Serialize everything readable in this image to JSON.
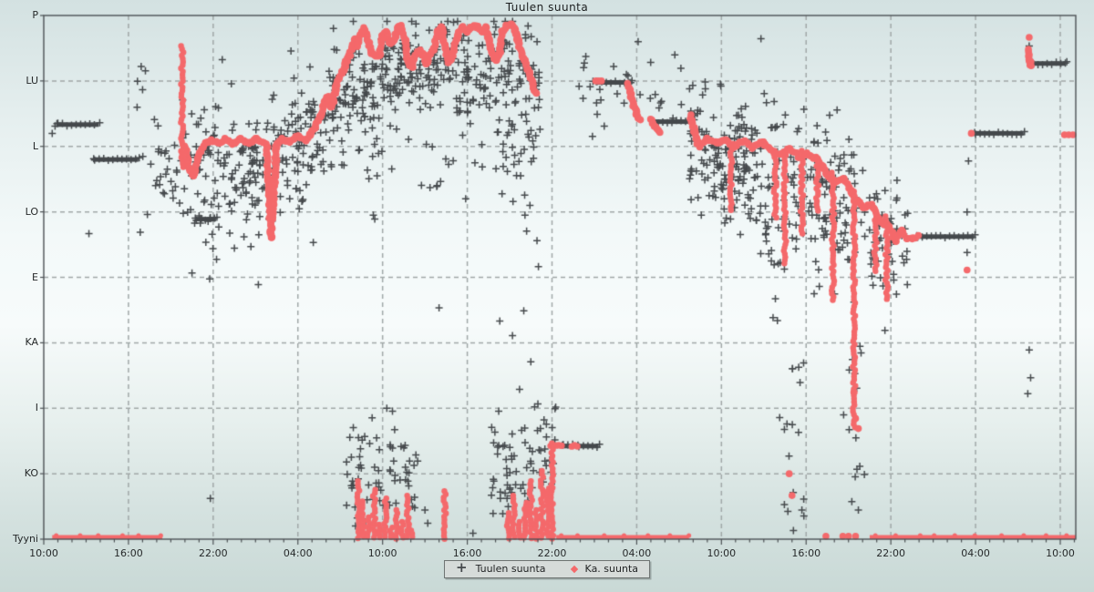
{
  "chart_data": {
    "type": "scatter",
    "title": "Tuulen suunta",
    "colors": {
      "avg": "#f4696b",
      "wind": "#45494c",
      "grid": "#a0a7a7",
      "frame": "#4c5154",
      "text": "#26292a"
    },
    "x_axis": {
      "tick_labels": [
        "10:00",
        "16:00",
        "22:00",
        "04:00",
        "10:00",
        "16:00",
        "22:00",
        "04:00",
        "10:00",
        "16:00",
        "22:00",
        "04:00",
        "10:00"
      ],
      "major_tick_hours": 6,
      "minor_tick_hours": 1,
      "range_hours": [
        0,
        73.1
      ],
      "grid": "dashed"
    },
    "y_axis": {
      "ticks": [
        {
          "label": "P",
          "deg": 360
        },
        {
          "label": "LU",
          "deg": 315
        },
        {
          "label": "L",
          "deg": 270
        },
        {
          "label": "LO",
          "deg": 225
        },
        {
          "label": "E",
          "deg": 180
        },
        {
          "label": "KA",
          "deg": 135
        },
        {
          "label": "I",
          "deg": 90
        },
        {
          "label": "KO",
          "deg": 45
        },
        {
          "label": "Tyyni",
          "deg": 0
        }
      ],
      "range_deg": [
        0,
        360
      ],
      "grid": "dashed"
    },
    "legend": [
      {
        "label": "Tuulen suunta",
        "marker": "plus",
        "color": "#45494c"
      },
      {
        "label": "Ka. suunta",
        "marker": "dot",
        "color": "#f4696b"
      }
    ],
    "series": {
      "avg_direction": {
        "name": "Ka. suunta",
        "color": "#f4696b",
        "polylines": [
          [
            [
              10.0,
              270
            ],
            [
              10.3,
              255
            ],
            [
              10.6,
              250
            ],
            [
              11.0,
              264
            ],
            [
              11.4,
              272
            ],
            [
              11.9,
              274
            ],
            [
              12.4,
              272
            ],
            [
              12.9,
              275
            ],
            [
              13.4,
              272
            ],
            [
              13.9,
              275
            ],
            [
              14.5,
              272
            ],
            [
              15.0,
              275
            ],
            [
              15.5,
              273
            ],
            [
              15.8,
              270
            ],
            [
              16.1,
              207
            ],
            [
              16.5,
              272
            ],
            [
              16.9,
              275
            ],
            [
              17.4,
              273
            ],
            [
              18.0,
              277
            ],
            [
              18.5,
              274
            ],
            [
              18.9,
              278
            ],
            [
              19.2,
              283
            ],
            [
              19.6,
              291
            ],
            [
              19.9,
              301
            ],
            [
              20.1,
              304
            ],
            [
              20.4,
              297
            ],
            [
              20.7,
              311
            ],
            [
              20.9,
              316
            ],
            [
              21.2,
              322
            ],
            [
              21.4,
              328
            ],
            [
              21.7,
              333
            ],
            [
              22.0,
              344
            ],
            [
              22.2,
              339
            ],
            [
              22.5,
              349
            ],
            [
              22.7,
              351
            ],
            [
              23.0,
              342
            ],
            [
              23.2,
              334
            ],
            [
              23.5,
              332
            ],
            [
              23.8,
              333
            ],
            [
              24.0,
              346
            ],
            [
              24.3,
              349
            ],
            [
              24.5,
              341
            ],
            [
              24.8,
              343
            ],
            [
              25.1,
              352
            ],
            [
              25.3,
              353
            ],
            [
              25.6,
              343
            ],
            [
              25.8,
              328
            ],
            [
              26.1,
              324
            ],
            [
              26.3,
              333
            ],
            [
              26.6,
              336
            ],
            [
              26.9,
              333
            ],
            [
              27.1,
              327
            ],
            [
              27.4,
              334
            ],
            [
              27.6,
              336
            ],
            [
              27.9,
              349
            ],
            [
              28.2,
              352
            ],
            [
              28.4,
              338
            ],
            [
              28.7,
              328
            ],
            [
              28.9,
              331
            ],
            [
              29.2,
              343
            ],
            [
              29.4,
              349
            ],
            [
              29.7,
              352
            ],
            [
              30.0,
              349
            ],
            [
              30.2,
              352
            ],
            [
              30.5,
              353
            ],
            [
              30.7,
              352
            ],
            [
              31.0,
              349
            ],
            [
              31.3,
              352
            ],
            [
              31.5,
              343
            ],
            [
              31.8,
              334
            ],
            [
              32.0,
              329
            ],
            [
              32.3,
              334
            ],
            [
              32.5,
              349
            ],
            [
              32.8,
              353
            ],
            [
              33.1,
              354
            ],
            [
              33.3,
              352
            ],
            [
              33.6,
              343
            ],
            [
              33.8,
              334
            ],
            [
              34.1,
              329
            ],
            [
              34.4,
              321
            ],
            [
              34.6,
              313
            ],
            [
              34.9,
              306
            ]
          ],
          [
            [
              46.4,
              270
            ],
            [
              47.0,
              275
            ],
            [
              47.7,
              272
            ],
            [
              48.3,
              275
            ],
            [
              48.9,
              270
            ],
            [
              49.6,
              274
            ],
            [
              50.2,
              269
            ],
            [
              50.9,
              273
            ],
            [
              51.5,
              267
            ],
            [
              52.2,
              264
            ],
            [
              52.8,
              269
            ],
            [
              53.5,
              263
            ],
            [
              54.1,
              265
            ],
            [
              54.8,
              261
            ],
            [
              55.4,
              252
            ],
            [
              56.0,
              245
            ],
            [
              56.7,
              248
            ],
            [
              57.3,
              237
            ],
            [
              58.0,
              228
            ],
            [
              58.6,
              230
            ],
            [
              59.3,
              218
            ],
            [
              59.9,
              215
            ],
            [
              60.3,
              205
            ],
            [
              60.7,
              212
            ],
            [
              61.2,
              206
            ],
            [
              61.9,
              208
            ]
          ],
          [
            [
              41.4,
              313
            ],
            [
              41.7,
              300
            ],
            [
              42.0,
              292
            ],
            [
              42.3,
              288
            ]
          ],
          [
            [
              43.0,
              289
            ],
            [
              43.3,
              283
            ],
            [
              43.6,
              279
            ]
          ],
          [
            [
              45.8,
              291
            ],
            [
              46.1,
              280
            ],
            [
              46.3,
              272
            ]
          ],
          [
            [
              69.7,
              337
            ],
            [
              69.8,
              330
            ],
            [
              69.9,
              325
            ]
          ]
        ],
        "streaks": [
          [
            9.8,
            339,
            255
          ],
          [
            48.7,
            270,
            225
          ],
          [
            51.8,
            267,
            219
          ],
          [
            52.5,
            264,
            189
          ],
          [
            53.7,
            267,
            210
          ],
          [
            54.8,
            263,
            225
          ],
          [
            55.9,
            252,
            163
          ],
          [
            57.4,
            239,
            75
          ],
          [
            58.9,
            228,
            182
          ],
          [
            59.7,
            222,
            163
          ],
          [
            22.3,
            40,
            0
          ],
          [
            22.6,
            26,
            0
          ],
          [
            23.0,
            15,
            0
          ],
          [
            23.4,
            34,
            0
          ],
          [
            23.8,
            10,
            0
          ],
          [
            24.2,
            28,
            0
          ],
          [
            24.6,
            8,
            0
          ],
          [
            25.0,
            20,
            0
          ],
          [
            25.4,
            12,
            0
          ],
          [
            25.8,
            30,
            0
          ],
          [
            26.1,
            6,
            0
          ],
          [
            28.4,
            33,
            0
          ],
          [
            32.9,
            18,
            0
          ],
          [
            33.3,
            30,
            0
          ],
          [
            33.7,
            12,
            0
          ],
          [
            34.1,
            25,
            0
          ],
          [
            34.5,
            40,
            0
          ],
          [
            34.9,
            20,
            0
          ],
          [
            35.3,
            47,
            0
          ],
          [
            35.7,
            35,
            0
          ],
          [
            36.0,
            66,
            0
          ]
        ],
        "dots": [
          [
            69.8,
            345
          ],
          [
            65.7,
            279
          ],
          [
            72.3,
            278
          ],
          [
            72.6,
            278
          ],
          [
            72.9,
            278
          ],
          [
            65.4,
            185
          ],
          [
            57.4,
            101
          ],
          [
            57.5,
            83
          ],
          [
            57.7,
            76
          ],
          [
            52.8,
            45
          ],
          [
            53.0,
            30
          ],
          [
            55.4,
            2
          ],
          [
            56.6,
            2
          ],
          [
            57.0,
            2
          ],
          [
            57.5,
            2
          ],
          [
            39.1,
            315
          ],
          [
            39.3,
            315
          ],
          [
            39.5,
            315
          ]
        ],
        "bars": [
          [
            35.9,
            36.8,
            64
          ],
          [
            37.4,
            37.9,
            64
          ]
        ],
        "calm_segments": [
          [
            0.6,
            8.4
          ],
          [
            36.3,
            45.7
          ],
          [
            58.5,
            73.1
          ]
        ]
      },
      "wind_direction": {
        "name": "Tuulen suunta",
        "color": "#45494c",
        "bars": [
          [
            1.0,
            3.9,
            285
          ],
          [
            3.6,
            6.7,
            261
          ],
          [
            10.8,
            12.2,
            220
          ],
          [
            39.2,
            41.6,
            314
          ],
          [
            43.2,
            46.0,
            287
          ],
          [
            36.8,
            37.4,
            64
          ],
          [
            37.9,
            39.3,
            64
          ],
          [
            61.9,
            65.9,
            208
          ],
          [
            66.0,
            69.4,
            279
          ],
          [
            70.1,
            72.4,
            327
          ]
        ],
        "clusters": [
          {
            "h0": 6.6,
            "h1": 10.5,
            "c0": 250,
            "c1": 252,
            "spread": 46,
            "count": 42
          },
          {
            "h0": 10.5,
            "h1": 16.3,
            "c0": 255,
            "c1": 256,
            "spread": 44,
            "count": 150
          },
          {
            "h0": 16.3,
            "h1": 19.8,
            "c0": 262,
            "c1": 270,
            "spread": 40,
            "count": 90
          },
          {
            "h0": 19.8,
            "h1": 23.7,
            "c0": 292,
            "c1": 318,
            "spread": 36,
            "count": 110
          },
          {
            "h0": 23.7,
            "h1": 29.2,
            "c0": 324,
            "c1": 328,
            "spread": 28,
            "count": 150
          },
          {
            "h0": 29.2,
            "h1": 35.2,
            "c0": 322,
            "c1": 318,
            "spread": 31,
            "count": 130
          },
          {
            "h0": 22.5,
            "h1": 35.2,
            "c0": 255,
            "c1": 268,
            "spread": 33,
            "count": 45
          },
          {
            "h0": 32.0,
            "h1": 35.5,
            "c0": 250,
            "c1": 230,
            "spread": 50,
            "count": 22
          },
          {
            "h0": 45.7,
            "h1": 51.1,
            "c0": 275,
            "c1": 252,
            "spread": 42,
            "count": 165
          },
          {
            "h0": 51.1,
            "h1": 57.6,
            "c0": 240,
            "c1": 225,
            "spread": 52,
            "count": 165
          },
          {
            "h0": 57.6,
            "h1": 61.2,
            "c0": 208,
            "c1": 200,
            "spread": 42,
            "count": 60
          },
          {
            "h0": 52.1,
            "h1": 54.2,
            "c0": 70,
            "c1": 70,
            "spread": 55,
            "count": 16,
            "dist": "uniform"
          },
          {
            "h0": 56.6,
            "h1": 58.3,
            "c0": 75,
            "c1": 75,
            "spread": 58,
            "count": 13,
            "dist": "uniform"
          },
          {
            "h0": 37.9,
            "h1": 46.0,
            "c0": 312,
            "c1": 308,
            "spread": 22,
            "count": 26
          },
          {
            "h0": 21.4,
            "h1": 26.6,
            "c0": 45,
            "c1": 42,
            "spread": 30,
            "count": 68
          },
          {
            "h0": 31.6,
            "h1": 36.3,
            "c0": 50,
            "c1": 55,
            "spread": 33,
            "count": 72
          }
        ],
        "points": [
          [
            3.2,
            210
          ],
          [
            0.6,
            279
          ],
          [
            0.8,
            284
          ],
          [
            6.9,
            325
          ],
          [
            7.2,
            322
          ],
          [
            7.0,
            309
          ],
          [
            11.8,
            28
          ],
          [
            10.5,
            183
          ],
          [
            15.2,
            175
          ],
          [
            24.3,
            90
          ],
          [
            24.7,
            88
          ],
          [
            27.0,
            20
          ],
          [
            27.2,
            11
          ],
          [
            30.4,
            4
          ],
          [
            28.0,
            159
          ],
          [
            32.3,
            150
          ],
          [
            33.2,
            140
          ],
          [
            34.0,
            157
          ],
          [
            34.5,
            122
          ],
          [
            33.7,
            103
          ],
          [
            35.0,
            93
          ],
          [
            50.8,
            344
          ],
          [
            38.2,
            303
          ],
          [
            38.7,
            311
          ],
          [
            39.2,
            292
          ],
          [
            39.7,
            284
          ],
          [
            42.1,
            342
          ],
          [
            44.7,
            333
          ],
          [
            65.4,
            225
          ],
          [
            65.4,
            197
          ],
          [
            60.1,
            191
          ],
          [
            60.2,
            182
          ],
          [
            65.5,
            260
          ],
          [
            69.8,
            130
          ],
          [
            69.9,
            111
          ],
          [
            69.7,
            100
          ],
          [
            53.1,
            6
          ],
          [
            53.7,
            20
          ],
          [
            57.7,
            20
          ],
          [
            57.6,
            48
          ],
          [
            69.8,
            339
          ]
        ]
      }
    }
  }
}
